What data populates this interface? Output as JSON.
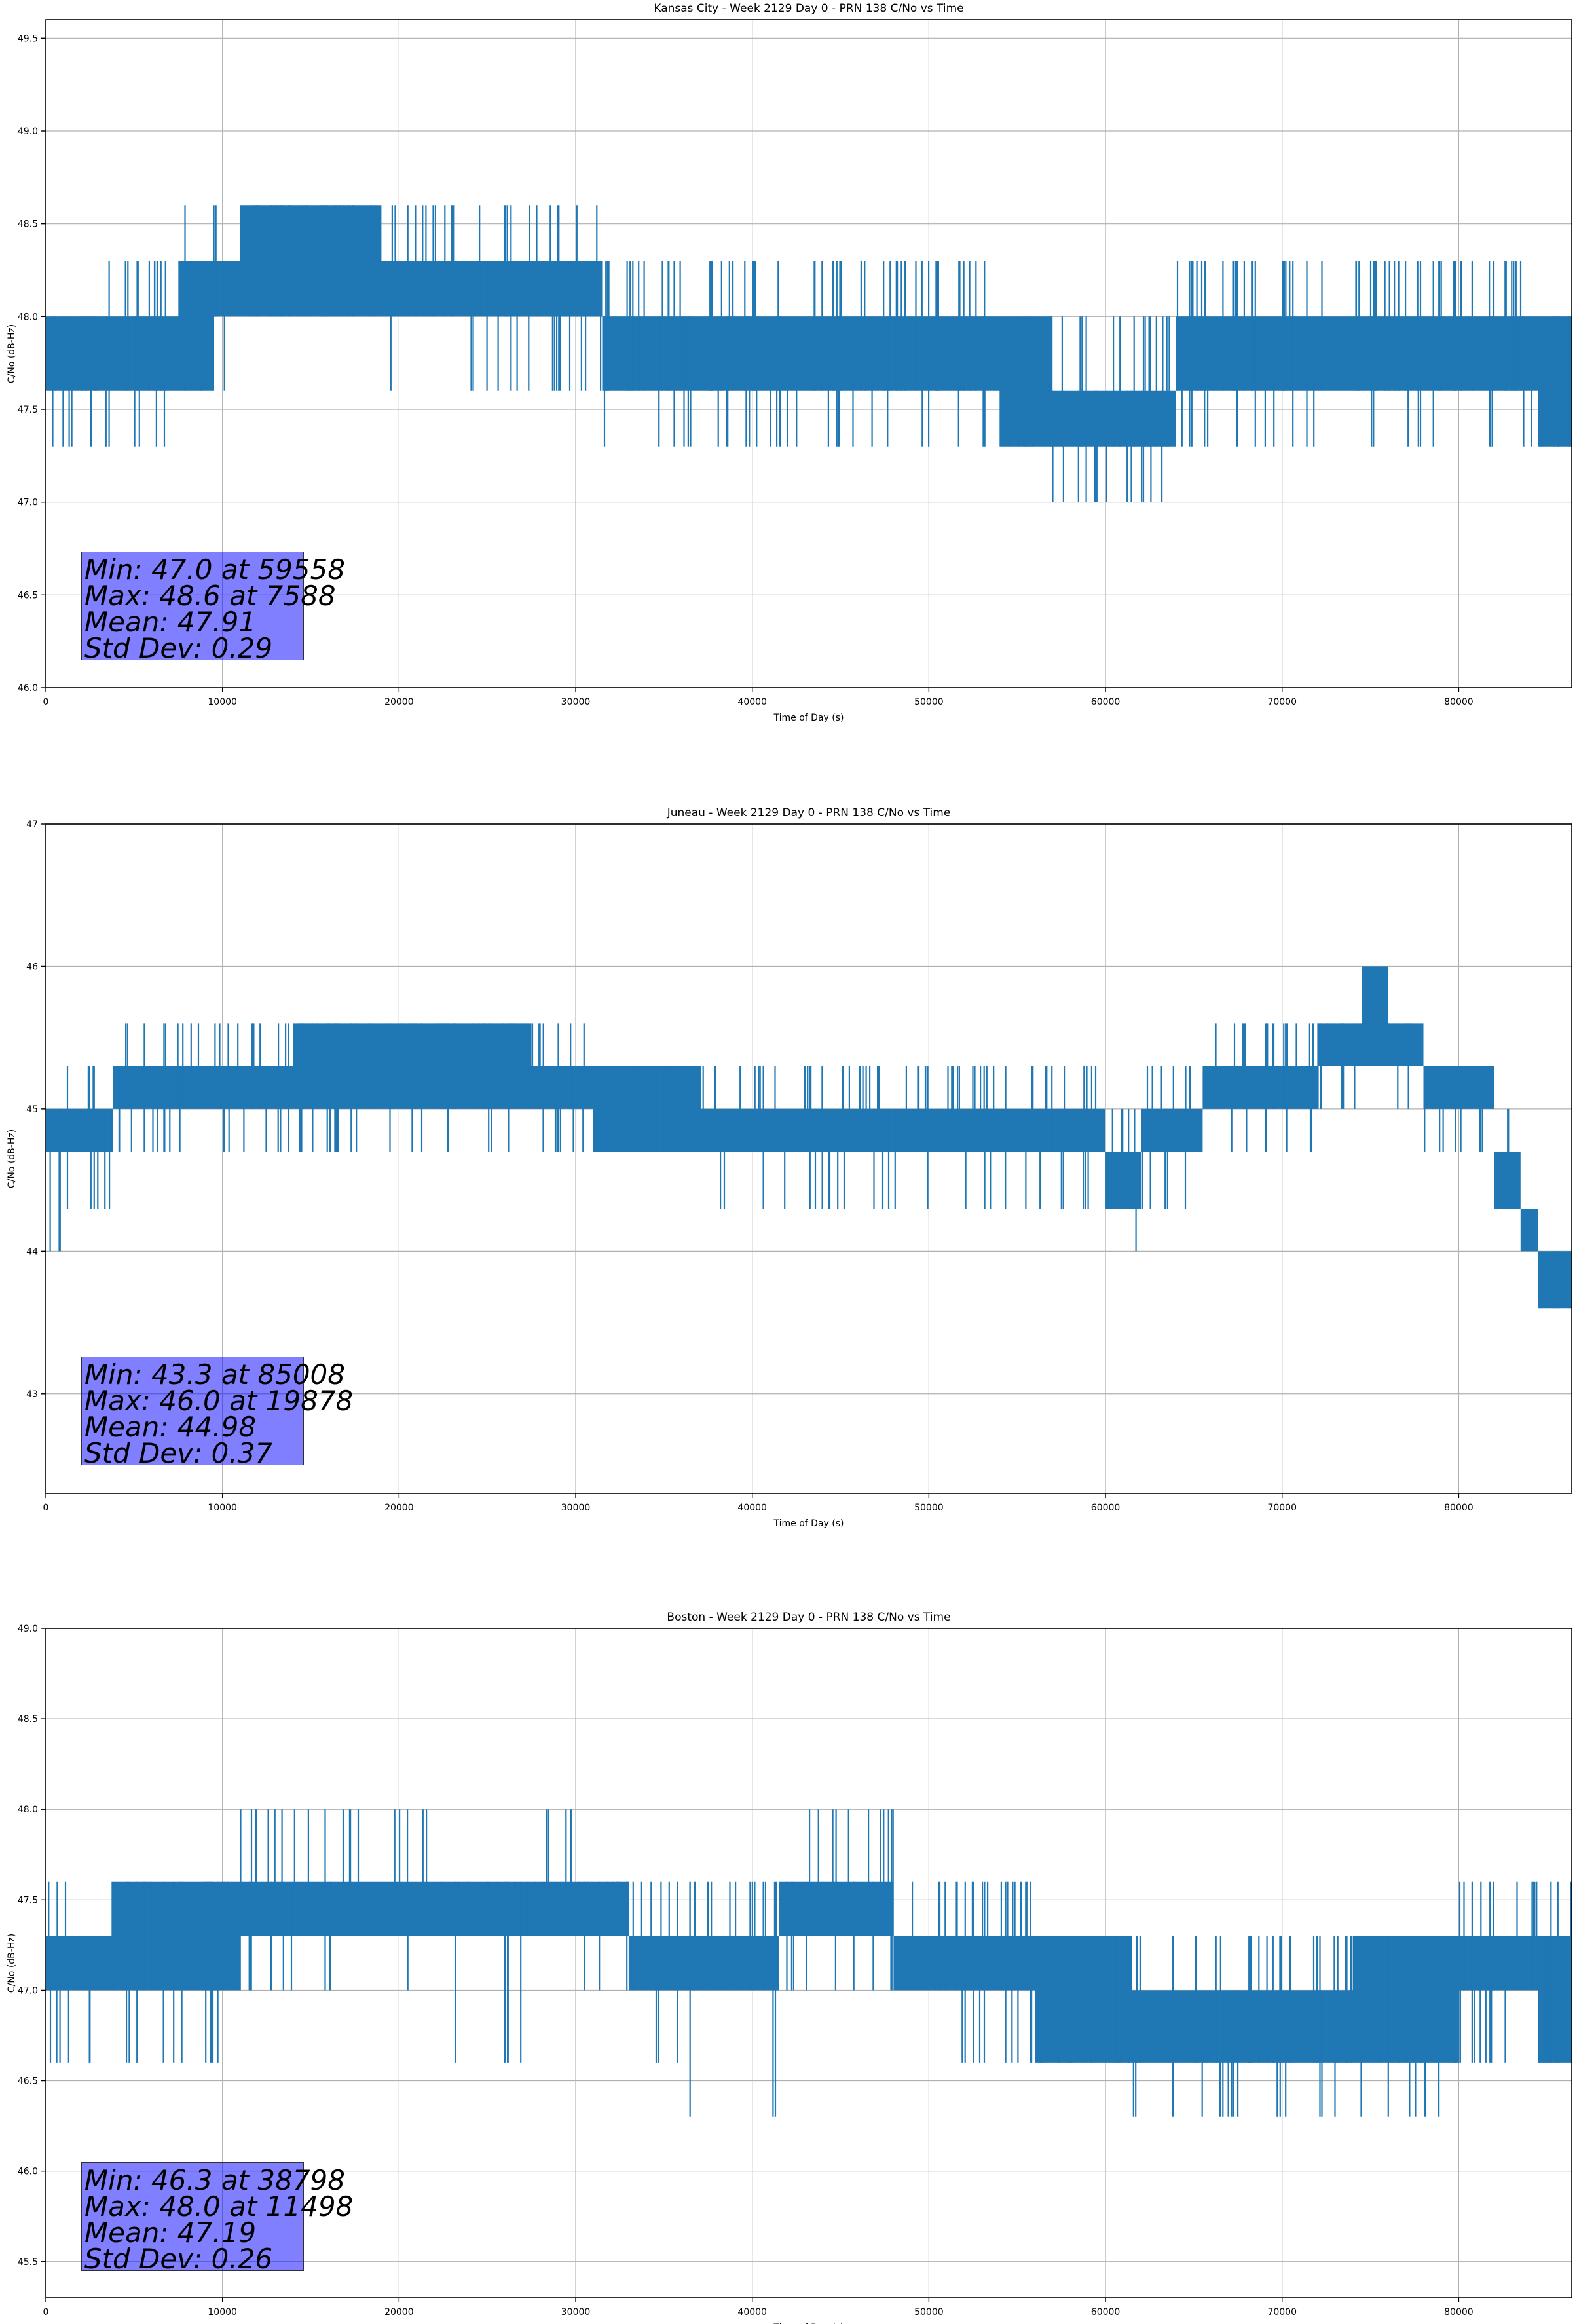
{
  "figure_background": "#ffffff",
  "series_color": "#1f77b4",
  "chart_data": [
    {
      "type": "line",
      "title": "Kansas City - Week 2129 Day 0 - PRN 138 C/No vs Time",
      "xlabel": "Time of Day (s)",
      "ylabel": "C/No (dB-Hz)",
      "xlim": [
        0,
        86400
      ],
      "ylim": [
        46.0,
        49.6
      ],
      "xticks": [
        0,
        10000,
        20000,
        30000,
        40000,
        50000,
        60000,
        70000,
        80000
      ],
      "yticks": [
        46.0,
        46.5,
        47.0,
        47.5,
        48.0,
        48.5,
        49.0,
        49.5
      ],
      "ytick_decimals": 1,
      "grid": true,
      "series": [
        {
          "values_description_free": true,
          "segments": [
            {
              "x0": 0,
              "x1": 3500,
              "low": 47.6,
              "high": 48.0,
              "spike_lo": 47.3,
              "spike_hi": 48.0
            },
            {
              "x0": 3500,
              "x1": 7500,
              "low": 47.6,
              "high": 48.0,
              "spike_lo": 47.3,
              "spike_hi": 48.3
            },
            {
              "x0": 7500,
              "x1": 9500,
              "low": 47.6,
              "high": 48.3,
              "spike_lo": 47.6,
              "spike_hi": 48.6
            },
            {
              "x0": 9500,
              "x1": 11000,
              "low": 48.0,
              "high": 48.3,
              "spike_lo": 47.6,
              "spike_hi": 48.6
            },
            {
              "x0": 11000,
              "x1": 19000,
              "low": 48.0,
              "high": 48.6,
              "spike_lo": 48.0,
              "spike_hi": 48.6
            },
            {
              "x0": 19000,
              "x1": 31500,
              "low": 48.0,
              "high": 48.3,
              "spike_lo": 47.6,
              "spike_hi": 48.6
            },
            {
              "x0": 31500,
              "x1": 54000,
              "low": 47.6,
              "high": 48.0,
              "spike_lo": 47.3,
              "spike_hi": 48.3
            },
            {
              "x0": 54000,
              "x1": 57000,
              "low": 47.3,
              "high": 48.0,
              "spike_lo": 47.3,
              "spike_hi": 48.0
            },
            {
              "x0": 57000,
              "x1": 64000,
              "low": 47.3,
              "high": 47.6,
              "spike_lo": 47.0,
              "spike_hi": 48.0
            },
            {
              "x0": 64000,
              "x1": 67000,
              "low": 47.6,
              "high": 48.0,
              "spike_lo": 47.3,
              "spike_hi": 48.3
            },
            {
              "x0": 67000,
              "x1": 84500,
              "low": 47.6,
              "high": 48.0,
              "spike_lo": 47.3,
              "spike_hi": 48.3
            },
            {
              "x0": 84500,
              "x1": 86400,
              "low": 47.3,
              "high": 48.0,
              "spike_lo": 47.3,
              "spike_hi": 48.0
            }
          ]
        }
      ],
      "annotation": {
        "lines": [
          "Min: 47.0 at 59558",
          "Max: 48.6 at 7588",
          "Mean: 47.91",
          "Std Dev: 0.29"
        ],
        "anchor_x": 2000,
        "anchor_y": 46.15
      }
    },
    {
      "type": "line",
      "title": "Juneau - Week 2129 Day 0 - PRN 138 C/No vs Time",
      "xlabel": "Time of Day (s)",
      "ylabel": "C/No (dB-Hz)",
      "xlim": [
        0,
        86400
      ],
      "ylim": [
        42.3,
        47.0
      ],
      "xticks": [
        0,
        10000,
        20000,
        30000,
        40000,
        50000,
        60000,
        70000,
        80000
      ],
      "yticks": [
        43,
        44,
        45,
        46,
        47
      ],
      "ytick_decimals": 0,
      "grid": true,
      "series": [
        {
          "segments": [
            {
              "x0": 0,
              "x1": 1200,
              "low": 44.7,
              "high": 45.0,
              "spike_lo": 44.0,
              "spike_hi": 45.0
            },
            {
              "x0": 1200,
              "x1": 3800,
              "low": 44.7,
              "high": 45.0,
              "spike_lo": 44.3,
              "spike_hi": 45.3
            },
            {
              "x0": 3800,
              "x1": 7000,
              "low": 45.0,
              "high": 45.3,
              "spike_lo": 44.7,
              "spike_hi": 45.6
            },
            {
              "x0": 7000,
              "x1": 14000,
              "low": 45.0,
              "high": 45.3,
              "spike_lo": 44.7,
              "spike_hi": 45.6
            },
            {
              "x0": 14000,
              "x1": 27500,
              "low": 45.0,
              "high": 45.6,
              "spike_lo": 44.7,
              "spike_hi": 45.6
            },
            {
              "x0": 27500,
              "x1": 31000,
              "low": 45.0,
              "high": 45.3,
              "spike_lo": 44.7,
              "spike_hi": 45.6
            },
            {
              "x0": 31000,
              "x1": 37000,
              "low": 44.7,
              "high": 45.3,
              "spike_lo": 44.7,
              "spike_hi": 45.3
            },
            {
              "x0": 37000,
              "x1": 50000,
              "low": 44.7,
              "high": 45.0,
              "spike_lo": 44.3,
              "spike_hi": 45.3
            },
            {
              "x0": 50000,
              "x1": 60000,
              "low": 44.7,
              "high": 45.0,
              "spike_lo": 44.3,
              "spike_hi": 45.3
            },
            {
              "x0": 60000,
              "x1": 62000,
              "low": 44.3,
              "high": 44.7,
              "spike_lo": 44.0,
              "spike_hi": 45.0
            },
            {
              "x0": 62000,
              "x1": 65500,
              "low": 44.7,
              "high": 45.0,
              "spike_lo": 44.3,
              "spike_hi": 45.3
            },
            {
              "x0": 65500,
              "x1": 72000,
              "low": 45.0,
              "high": 45.3,
              "spike_lo": 44.7,
              "spike_hi": 45.6
            },
            {
              "x0": 72000,
              "x1": 74500,
              "low": 45.3,
              "high": 45.6,
              "spike_lo": 45.0,
              "spike_hi": 45.6
            },
            {
              "x0": 74500,
              "x1": 76000,
              "low": 45.3,
              "high": 46.0,
              "spike_lo": 45.3,
              "spike_hi": 46.0
            },
            {
              "x0": 76000,
              "x1": 78000,
              "low": 45.3,
              "high": 45.6,
              "spike_lo": 45.0,
              "spike_hi": 45.6
            },
            {
              "x0": 78000,
              "x1": 82000,
              "low": 45.0,
              "high": 45.3,
              "spike_lo": 44.7,
              "spike_hi": 45.3
            },
            {
              "x0": 82000,
              "x1": 83500,
              "low": 44.3,
              "high": 44.7,
              "spike_lo": 44.3,
              "spike_hi": 45.0
            },
            {
              "x0": 83500,
              "x1": 84500,
              "low": 44.0,
              "high": 44.3,
              "spike_lo": 44.0,
              "spike_hi": 44.3
            },
            {
              "x0": 84500,
              "x1": 86400,
              "low": 43.6,
              "high": 44.0,
              "spike_lo": 43.3,
              "spike_hi": 44.0
            }
          ]
        }
      ],
      "annotation": {
        "lines": [
          "Min: 43.3 at 85008",
          "Max: 46.0 at 19878",
          "Mean: 44.98",
          "Std Dev: 0.37"
        ],
        "anchor_x": 2000,
        "anchor_y": 42.5
      }
    },
    {
      "type": "line",
      "title": "Boston - Week 2129 Day 0 - PRN 138 C/No vs Time",
      "xlabel": "Time of Day (s)",
      "ylabel": "C/No (dB-Hz)",
      "xlim": [
        0,
        86400
      ],
      "ylim": [
        45.3,
        49.0
      ],
      "xticks": [
        0,
        10000,
        20000,
        30000,
        40000,
        50000,
        60000,
        70000,
        80000
      ],
      "yticks": [
        45.5,
        46.0,
        46.5,
        47.0,
        47.5,
        48.0,
        48.5,
        49.0
      ],
      "ytick_decimals": 1,
      "grid": true,
      "series": [
        {
          "segments": [
            {
              "x0": 0,
              "x1": 3800,
              "low": 47.0,
              "high": 47.3,
              "spike_lo": 46.6,
              "spike_hi": 47.6
            },
            {
              "x0": 3800,
              "x1": 11000,
              "low": 47.0,
              "high": 47.6,
              "spike_lo": 46.6,
              "spike_hi": 47.6
            },
            {
              "x0": 11000,
              "x1": 22000,
              "low": 47.3,
              "high": 47.6,
              "spike_lo": 47.0,
              "spike_hi": 48.0
            },
            {
              "x0": 22000,
              "x1": 27500,
              "low": 47.3,
              "high": 47.6,
              "spike_lo": 46.6,
              "spike_hi": 47.6
            },
            {
              "x0": 27500,
              "x1": 30000,
              "low": 47.3,
              "high": 47.6,
              "spike_lo": 47.3,
              "spike_hi": 48.0
            },
            {
              "x0": 30000,
              "x1": 33000,
              "low": 47.3,
              "high": 47.6,
              "spike_lo": 47.0,
              "spike_hi": 47.6
            },
            {
              "x0": 33000,
              "x1": 36000,
              "low": 47.0,
              "high": 47.3,
              "spike_lo": 46.6,
              "spike_hi": 47.6
            },
            {
              "x0": 36000,
              "x1": 41500,
              "low": 47.0,
              "high": 47.3,
              "spike_lo": 46.3,
              "spike_hi": 47.6
            },
            {
              "x0": 41500,
              "x1": 48000,
              "low": 47.3,
              "high": 47.6,
              "spike_lo": 47.0,
              "spike_hi": 48.0
            },
            {
              "x0": 48000,
              "x1": 56000,
              "low": 47.0,
              "high": 47.3,
              "spike_lo": 46.6,
              "spike_hi": 47.6
            },
            {
              "x0": 56000,
              "x1": 61500,
              "low": 46.6,
              "high": 47.3,
              "spike_lo": 46.6,
              "spike_hi": 47.3
            },
            {
              "x0": 61500,
              "x1": 74000,
              "low": 46.6,
              "high": 47.0,
              "spike_lo": 46.3,
              "spike_hi": 47.3
            },
            {
              "x0": 74000,
              "x1": 80000,
              "low": 46.6,
              "high": 47.3,
              "spike_lo": 46.3,
              "spike_hi": 47.3
            },
            {
              "x0": 80000,
              "x1": 84500,
              "low": 47.0,
              "high": 47.3,
              "spike_lo": 46.6,
              "spike_hi": 47.6
            },
            {
              "x0": 84500,
              "x1": 86400,
              "low": 46.6,
              "high": 47.3,
              "spike_lo": 46.6,
              "spike_hi": 47.6
            }
          ]
        }
      ],
      "annotation": {
        "lines": [
          "Min: 46.3 at 38798",
          "Max: 48.0 at 11498",
          "Mean: 47.19",
          "Std Dev: 0.26"
        ],
        "anchor_x": 2000,
        "anchor_y": 45.45
      }
    }
  ]
}
